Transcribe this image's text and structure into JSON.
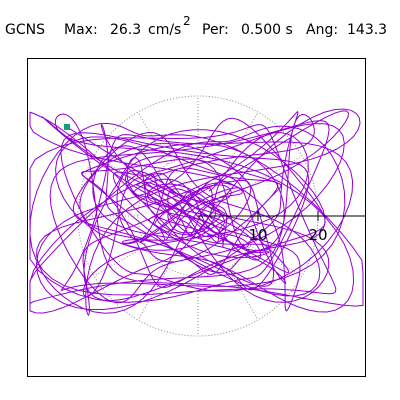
{
  "header": {
    "station": "GCNS",
    "max_label": "Max:",
    "max_value": "26.3",
    "max_unit": "cm/s",
    "max_exponent": "2",
    "per_label": "Per:",
    "per_value": "0.500 s",
    "ang_label": "Ang:",
    "ang_value": "143.3"
  },
  "axis": {
    "labels": [
      "10",
      "20"
    ]
  }
}
